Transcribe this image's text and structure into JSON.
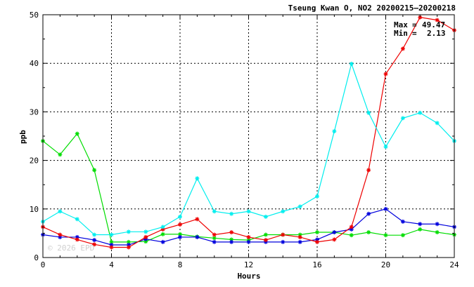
{
  "chart_data": {
    "type": "line",
    "title": "Tseung Kwan O, NO2 20200215—20200218",
    "xlabel": "Hours",
    "ylabel": "ppb",
    "xlim": [
      0,
      24
    ],
    "ylim": [
      0,
      50
    ],
    "xticks": [
      0,
      4,
      8,
      12,
      16,
      20,
      24
    ],
    "yticks": [
      0,
      10,
      20,
      30,
      40,
      50
    ],
    "grid": true,
    "x": [
      0,
      1,
      2,
      3,
      4,
      5,
      6,
      7,
      8,
      9,
      10,
      11,
      12,
      13,
      14,
      15,
      16,
      17,
      18,
      19,
      20,
      21,
      22,
      23,
      24
    ],
    "series": [
      {
        "color": "#00dd00",
        "values": [
          24.0,
          21.2,
          25.5,
          18.0,
          3.2,
          3.2,
          3.3,
          4.8,
          4.8,
          4.3,
          4.0,
          3.7,
          3.6,
          4.7,
          4.7,
          4.7,
          5.2,
          5.2,
          4.6,
          5.2,
          4.6,
          4.6,
          5.8,
          5.2,
          4.7
        ]
      },
      {
        "color": "#0000dd",
        "values": [
          4.7,
          4.2,
          4.2,
          3.6,
          2.6,
          2.6,
          3.8,
          3.2,
          4.2,
          4.2,
          3.2,
          3.2,
          3.2,
          3.2,
          3.2,
          3.2,
          3.7,
          5.2,
          5.8,
          9.0,
          10.0,
          7.4,
          6.9,
          6.9,
          6.3
        ]
      },
      {
        "color": "#ee0000",
        "values": [
          6.3,
          4.7,
          3.7,
          2.7,
          2.1,
          2.1,
          4.2,
          5.8,
          6.8,
          7.9,
          4.7,
          5.2,
          4.2,
          3.6,
          4.7,
          4.2,
          3.2,
          3.7,
          6.3,
          18.0,
          37.8,
          43.0,
          49.47,
          48.9,
          46.8
        ]
      },
      {
        "color": "#00eeee",
        "values": [
          7.4,
          9.5,
          7.9,
          4.7,
          4.7,
          5.3,
          5.3,
          6.3,
          8.4,
          16.3,
          9.5,
          9.0,
          9.5,
          8.4,
          9.5,
          10.5,
          12.6,
          26.0,
          39.9,
          29.8,
          22.8,
          28.7,
          29.8,
          27.7,
          24.0
        ]
      }
    ],
    "max_label": "Max",
    "max_value": "49.47",
    "min_label": "Min",
    "min_value": "2.13",
    "watermark": "© 2026 EPD"
  }
}
